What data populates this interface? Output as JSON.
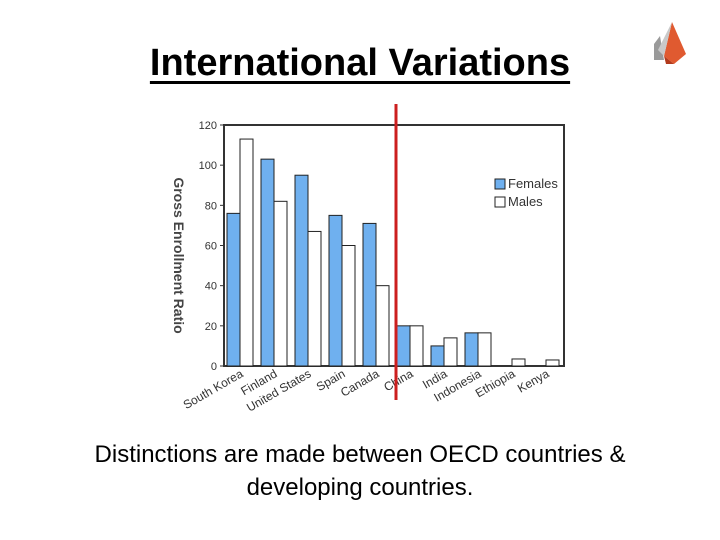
{
  "slide": {
    "title": "International Variations",
    "caption_line1": "Distinctions are made between OECD countries &",
    "caption_line2": "developing countries."
  },
  "colors": {
    "females": "#6fb0ef",
    "males": "#ffffff",
    "divider": "#cc1f1f",
    "logo_dark": "#b23a1c",
    "logo_light": "#e05a30",
    "logo_gray": "#9a9a9a"
  },
  "chart_data": {
    "type": "bar",
    "title": "",
    "xlabel": "",
    "ylabel": "Gross Enrollment Ratio",
    "ylim": [
      0,
      120
    ],
    "yticks": [
      0,
      20,
      40,
      60,
      80,
      100,
      120
    ],
    "categories": [
      "South Korea",
      "Finland",
      "United States",
      "Spain",
      "Canada",
      "China",
      "India",
      "Indonesia",
      "Ethiopia",
      "Kenya"
    ],
    "series": [
      {
        "name": "Females",
        "values": [
          76,
          103,
          95,
          75,
          71,
          20,
          10,
          16.5,
          0,
          0
        ]
      },
      {
        "name": "Males",
        "values": [
          113,
          82,
          67,
          60,
          40,
          20,
          14,
          16.5,
          3.5,
          3
        ]
      }
    ],
    "legend_position": "right",
    "divider_after_category": "Canada"
  }
}
